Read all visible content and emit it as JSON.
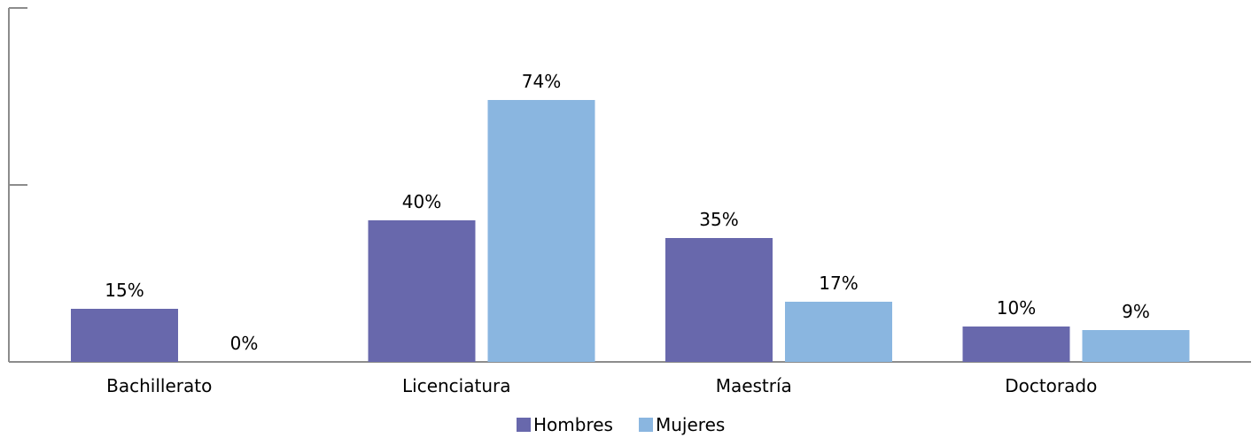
{
  "chart_data": {
    "type": "bar",
    "categories": [
      "Bachillerato",
      "Licenciatura",
      "Maestría",
      "Doctorado"
    ],
    "series": [
      {
        "name": "Hombres",
        "values": [
          15,
          40,
          35,
          10
        ],
        "labels": [
          "15%",
          "40%",
          "35%",
          "10%"
        ],
        "color": "#6868ac"
      },
      {
        "name": "Mujeres",
        "values": [
          0,
          74,
          17,
          9
        ],
        "labels": [
          "0%",
          "74%",
          "17%",
          "9%"
        ],
        "color": "#8ab6e0"
      }
    ],
    "ylim": [
      0,
      80
    ],
    "yticks": [
      0,
      50,
      100
    ],
    "grid": false,
    "legend_position": "bottom-center",
    "title": "",
    "xlabel": "",
    "ylabel": ""
  }
}
